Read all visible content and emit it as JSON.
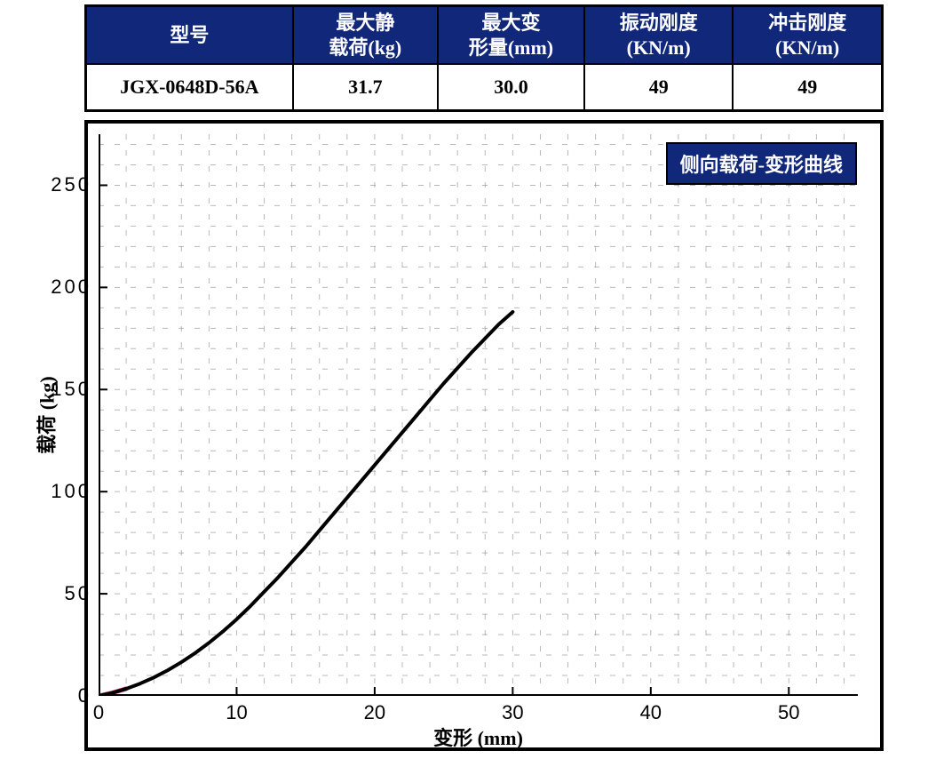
{
  "table": {
    "headers": [
      "型号",
      "最大静\n载荷(kg)",
      "最大变\n形量(mm)",
      "振动刚度\n(KN/m)",
      "冲击刚度\n(KN/m)"
    ],
    "row": [
      "JGX-0648D-56A",
      "31.7",
      "30.0",
      "49",
      "49"
    ],
    "header_bg": "#10277a",
    "header_fg": "#ffffff",
    "border_color": "#000000",
    "header_fontsize": 22,
    "body_fontsize": 22
  },
  "chart": {
    "type": "line",
    "legend_text": "侧向载荷-变形曲线",
    "legend_bg": "#10277a",
    "legend_fg": "#ffffff",
    "xlabel": "变形 (mm)",
    "ylabel": "载荷 (kg)",
    "label_fontsize": 22,
    "tick_fontsize": 22,
    "xlim": [
      0,
      55
    ],
    "ylim": [
      0,
      275
    ],
    "xticks": [
      0,
      10,
      20,
      30,
      40,
      50
    ],
    "yticks": [
      0,
      50,
      100,
      150,
      200,
      250
    ],
    "minor_x_step": 2,
    "minor_y_step": 10,
    "background_color": "#ffffff",
    "grid_minor_color": "#8a8a8a",
    "axis_color": "#000000",
    "curve_color": "#000000",
    "curve_width": 4,
    "curve_start_accent": "#d63384",
    "curve_points": [
      [
        0.0,
        0.0
      ],
      [
        1.0,
        1.5
      ],
      [
        2.0,
        3.5
      ],
      [
        3.0,
        6.0
      ],
      [
        4.0,
        9.0
      ],
      [
        5.0,
        12.5
      ],
      [
        6.0,
        16.5
      ],
      [
        7.0,
        21.0
      ],
      [
        8.0,
        26.0
      ],
      [
        9.0,
        31.5
      ],
      [
        10.0,
        37.5
      ],
      [
        11.0,
        44.0
      ],
      [
        12.0,
        51.0
      ],
      [
        13.0,
        58.0
      ],
      [
        14.0,
        65.5
      ],
      [
        15.0,
        73.0
      ],
      [
        16.0,
        81.0
      ],
      [
        17.0,
        89.0
      ],
      [
        18.0,
        97.0
      ],
      [
        19.0,
        105.0
      ],
      [
        20.0,
        113.0
      ],
      [
        21.0,
        121.0
      ],
      [
        22.0,
        129.0
      ],
      [
        23.0,
        137.0
      ],
      [
        24.0,
        145.0
      ],
      [
        25.0,
        153.0
      ],
      [
        26.0,
        160.5
      ],
      [
        27.0,
        168.0
      ],
      [
        28.0,
        175.0
      ],
      [
        29.0,
        182.0
      ],
      [
        30.0,
        188.0
      ]
    ]
  }
}
